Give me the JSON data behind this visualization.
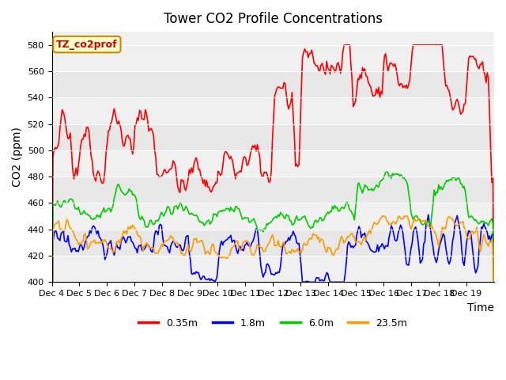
{
  "title": "Tower CO2 Profile Concentrations",
  "xlabel": "Time",
  "ylabel": "CO2 (ppm)",
  "ylim": [
    400,
    590
  ],
  "yticks": [
    400,
    420,
    440,
    460,
    480,
    500,
    520,
    540,
    560,
    580
  ],
  "x_labels": [
    "Dec 4",
    "Dec 5",
    "Dec 6",
    "Dec 7",
    "Dec 8",
    "Dec 9",
    "Dec 10",
    "Dec 11",
    "Dec 12",
    "Dec 13",
    "Dec 14",
    "Dec 15",
    "Dec 16",
    "Dec 17",
    "Dec 18",
    "Dec 19"
  ],
  "legend_label": "TZ_co2prof",
  "legend_entries": [
    "0.35m",
    "1.8m",
    "6.0m",
    "23.5m"
  ],
  "line_colors": [
    "#ff0000",
    "#0000ff",
    "#00cc00",
    "#ff9900"
  ],
  "line_width": 1.2,
  "band_color": "#e0e0e0",
  "band_alpha": 0.5,
  "band_ranges": [
    [
      420,
      440
    ],
    [
      460,
      480
    ],
    [
      500,
      520
    ],
    [
      540,
      560
    ]
  ],
  "title_fontsize": 12,
  "axis_label_fontsize": 10,
  "tick_fontsize": 8
}
